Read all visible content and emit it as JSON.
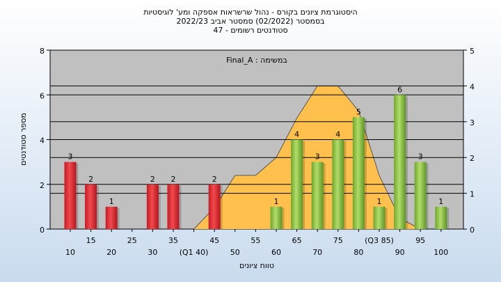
{
  "chart_data": {
    "type": "bar",
    "title_lines": [
      "היסטוגרמת ציונים בקורס - נהול שרשראות אספקה ומע' לוגיסטיות",
      "בסמסטר  (02/2022)  סמסטר אביב 2022/23",
      "סטודנטים רשומים - 47"
    ],
    "annotation": "במשימה : Final_A",
    "xlabel": "טווח ציונים",
    "ylabel": "מספר סטודנטים",
    "ylim": [
      0,
      8
    ],
    "y_ticks": [
      "0",
      "2",
      "4",
      "6",
      "8"
    ],
    "y2lim": [
      0,
      5
    ],
    "y2_ticks": [
      "0",
      "1",
      "2",
      "3",
      "4",
      "5"
    ],
    "categories": [
      "10",
      "15",
      "20",
      "25",
      "30",
      "35",
      "(Q1 40)",
      "45",
      "50",
      "55",
      "60",
      "65",
      "70",
      "75",
      "80",
      "(Q3 85)",
      "90",
      "95",
      "100"
    ],
    "values": [
      3,
      2,
      1,
      0,
      2,
      2,
      0,
      2,
      0,
      0,
      1,
      4,
      3,
      4,
      5,
      1,
      6,
      3,
      1
    ],
    "bar_labels": [
      "3",
      "2",
      "1",
      "",
      "2",
      "2",
      "",
      "2",
      "",
      "",
      "1",
      "4",
      "3",
      "4",
      "5",
      "1",
      "6",
      "3",
      "1"
    ],
    "bar_colors": [
      "red",
      "red",
      "red",
      "",
      "red",
      "red",
      "",
      "red",
      "",
      "",
      "green",
      "green",
      "green",
      "green",
      "green",
      "green",
      "green",
      "green",
      "green"
    ],
    "distribution_curve_right_axis": [
      0,
      0,
      0,
      0,
      0,
      0,
      0,
      0.6,
      1.5,
      1.5,
      2.0,
      3.1,
      4.0,
      4.0,
      3.3,
      1.5,
      0.3,
      0,
      0
    ],
    "curve_gray_until": "(Q1 40)",
    "colors": {
      "plot_background": "#c0c0c0",
      "curve_fill": "#ffc04d",
      "curve_gray": "#bdbdbd",
      "red_bar": "#e8343b",
      "green_bar": "#8fc641",
      "grid": "#000000"
    },
    "grid": true
  }
}
